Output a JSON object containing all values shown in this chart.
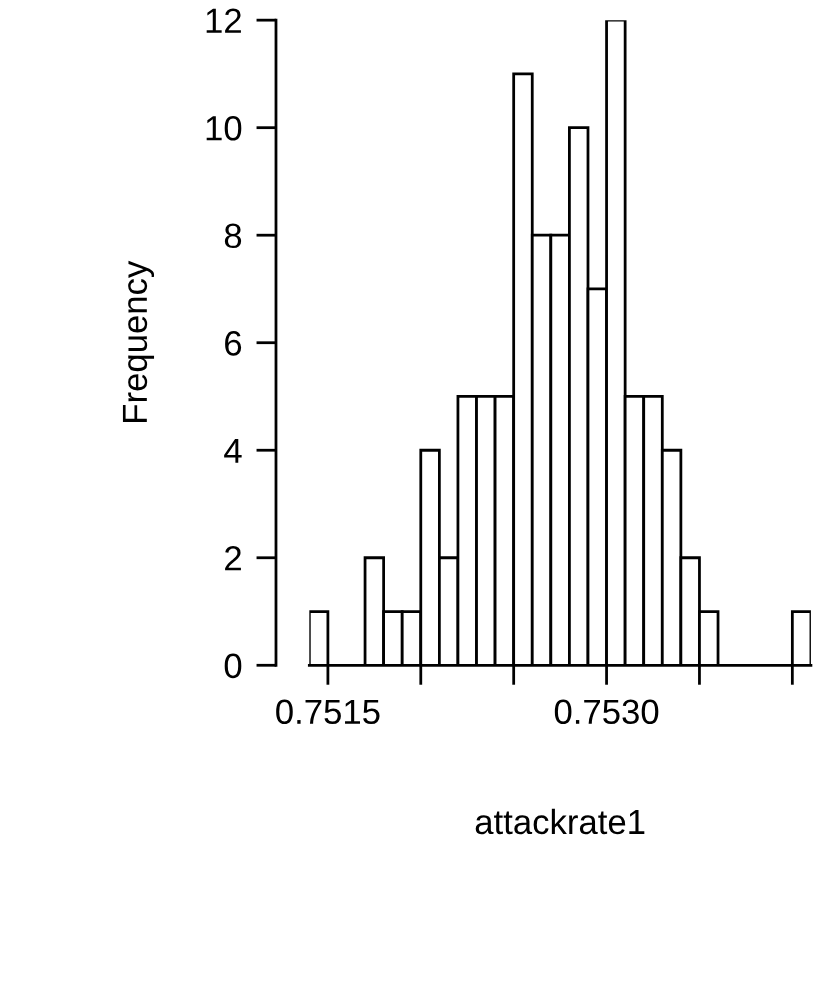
{
  "chart_data": {
    "type": "histogram",
    "xlabel": "attackrate1",
    "ylabel": "Frequency",
    "bins": [
      0.7514,
      0.7515,
      0.7516,
      0.7517,
      0.7518,
      0.7519,
      0.752,
      0.7521,
      0.7522,
      0.7523,
      0.7524,
      0.7525,
      0.7526,
      0.7527,
      0.7528,
      0.7529,
      0.753,
      0.7531,
      0.7532,
      0.7533,
      0.7534,
      0.7535,
      0.7536,
      0.7537,
      0.7538,
      0.7539,
      0.754,
      0.7541
    ],
    "values": [
      1,
      0,
      0,
      2,
      1,
      1,
      4,
      2,
      5,
      5,
      5,
      11,
      8,
      8,
      10,
      7,
      12,
      5,
      5,
      4,
      2,
      1,
      0,
      0,
      0,
      0,
      1
    ],
    "color": "#ffffff",
    "xlim": [
      0.7514,
      0.7541
    ],
    "ylim": [
      0,
      12
    ],
    "xticks": [
      {
        "value": 0.7515,
        "label": "0.7515"
      },
      {
        "value": 0.752,
        "label": null
      },
      {
        "value": 0.7525,
        "label": null
      },
      {
        "value": 0.753,
        "label": "0.7530"
      },
      {
        "value": 0.7535,
        "label": null
      },
      {
        "value": 0.754,
        "label": null
      }
    ],
    "yticks": [
      0,
      2,
      4,
      6,
      8,
      10,
      12
    ],
    "grid": false
  }
}
